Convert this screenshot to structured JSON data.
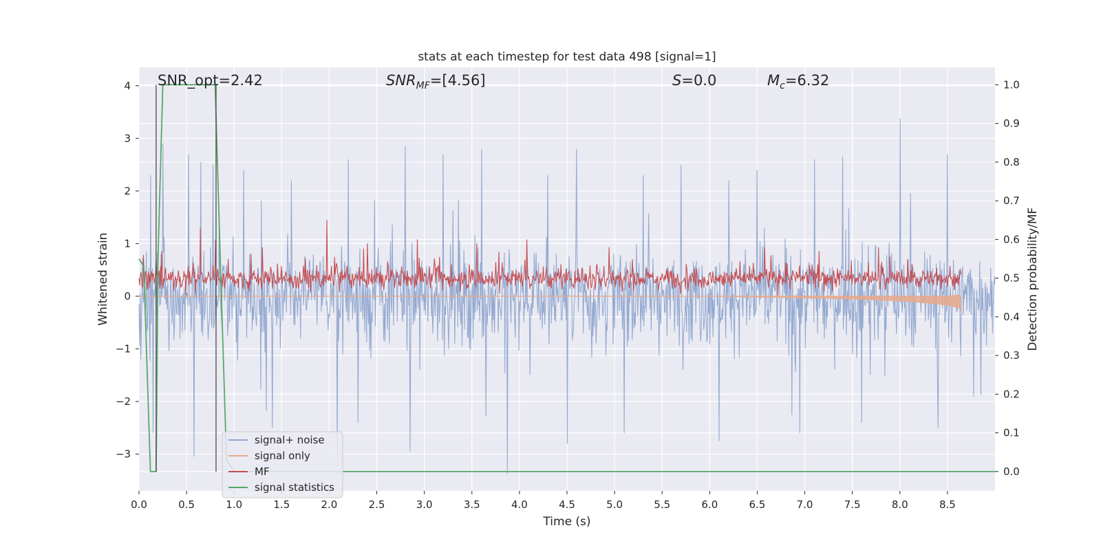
{
  "chart_data": {
    "type": "line",
    "title": "stats at each timestep for test data 498 [signal=1]",
    "xlabel": "Time (s)",
    "ylabel": "Whitened strain",
    "y2label": "Detection probability/MF",
    "xlim": [
      0.0,
      9.0
    ],
    "ylim": [
      -3.7,
      4.35
    ],
    "y2lim": [
      -0.05,
      1.045
    ],
    "xticks": [
      "0.0",
      "0.5",
      "1.0",
      "1.5",
      "2.0",
      "2.5",
      "3.0",
      "3.5",
      "4.0",
      "4.5",
      "5.0",
      "5.5",
      "6.0",
      "6.5",
      "7.0",
      "7.5",
      "8.0",
      "8.5"
    ],
    "yticks": [
      "−3",
      "−2",
      "−1",
      "0",
      "1",
      "2",
      "3",
      "4"
    ],
    "y2ticks": [
      "0.0",
      "0.1",
      "0.2",
      "0.3",
      "0.4",
      "0.5",
      "0.6",
      "0.7",
      "0.8",
      "0.9",
      "1.0"
    ],
    "grid": true,
    "legend_position": "lower-left",
    "annotations": {
      "snr_opt": "SNR_opt=2.42",
      "snr_mf_main": "SNR",
      "snr_mf_sub": "MF",
      "snr_mf_rest": "=[4.56]",
      "s_main": "S",
      "s_rest": "=0.0",
      "mc_main": "M",
      "mc_sub": "c",
      "mc_rest": "=6.32"
    },
    "vlines": [
      0.18,
      0.81
    ],
    "series": [
      {
        "name": "signal+ noise",
        "color": "#8fa6cf",
        "axis": "left",
        "description_values": "noise band approx ±1.1 with peaks up to 3.4 (t≈8.0) and down to −3.4 (t≈3.87)",
        "peaks": [
          [
            0.12,
            2.3
          ],
          [
            0.25,
            2.9
          ],
          [
            0.52,
            2.7
          ],
          [
            0.65,
            2.55
          ],
          [
            0.78,
            2.5
          ],
          [
            1.1,
            2.4
          ],
          [
            1.6,
            2.2
          ],
          [
            2.2,
            2.6
          ],
          [
            2.8,
            2.85
          ],
          [
            3.2,
            2.7
          ],
          [
            3.6,
            2.8
          ],
          [
            4.3,
            2.3
          ],
          [
            4.6,
            2.8
          ],
          [
            5.3,
            2.3
          ],
          [
            5.7,
            2.5
          ],
          [
            6.2,
            2.2
          ],
          [
            6.5,
            2.4
          ],
          [
            7.1,
            2.6
          ],
          [
            7.4,
            2.65
          ],
          [
            8.0,
            3.38
          ],
          [
            8.5,
            2.7
          ]
        ],
        "troughs": [
          [
            0.15,
            -2.6
          ],
          [
            0.58,
            -3.05
          ],
          [
            1.4,
            -2.5
          ],
          [
            2.3,
            -2.4
          ],
          [
            2.85,
            -2.95
          ],
          [
            3.87,
            -3.38
          ],
          [
            4.5,
            -2.8
          ],
          [
            5.1,
            -2.6
          ],
          [
            6.1,
            -2.75
          ],
          [
            6.95,
            -2.6
          ],
          [
            7.6,
            -2.4
          ],
          [
            8.4,
            -2.5
          ]
        ]
      },
      {
        "name": "signal only",
        "color": "#e8a98c",
        "axis": "left",
        "x": [
          0.0,
          6.0,
          7.0,
          7.5,
          8.0,
          8.3,
          8.5,
          8.62,
          8.64
        ],
        "upper": [
          0.0,
          0.0,
          0.0,
          0.0,
          0.0,
          0.0,
          0.0,
          0.02,
          0.0
        ],
        "lower": [
          0.0,
          0.0,
          -0.03,
          -0.05,
          -0.09,
          -0.13,
          -0.17,
          -0.22,
          -0.28
        ]
      },
      {
        "name": "MF",
        "color": "#c44e52",
        "axis": "right",
        "baseline": 0.5,
        "band": [
          0.46,
          0.54
        ],
        "peaks": [
          [
            0.05,
            0.56
          ],
          [
            0.25,
            0.57
          ],
          [
            0.67,
            0.63
          ],
          [
            0.84,
            0.6
          ],
          [
            1.35,
            0.58
          ],
          [
            2.06,
            0.65
          ],
          [
            2.5,
            0.59
          ],
          [
            3.05,
            0.6
          ],
          [
            3.7,
            0.59
          ],
          [
            4.25,
            0.6
          ],
          [
            5.15,
            0.58
          ],
          [
            6.85,
            0.58
          ],
          [
            7.45,
            0.57
          ],
          [
            8.1,
            0.58
          ]
        ]
      },
      {
        "name": "signal statistics",
        "color": "#55a868",
        "axis": "right",
        "x": [
          0.0,
          0.05,
          0.12,
          0.18,
          0.2,
          0.25,
          0.8,
          0.86,
          0.92,
          1.0,
          9.0
        ],
        "values": [
          0.55,
          0.53,
          0.0,
          0.0,
          0.55,
          1.0,
          1.0,
          0.5,
          0.03,
          0.0,
          0.0
        ]
      }
    ]
  }
}
